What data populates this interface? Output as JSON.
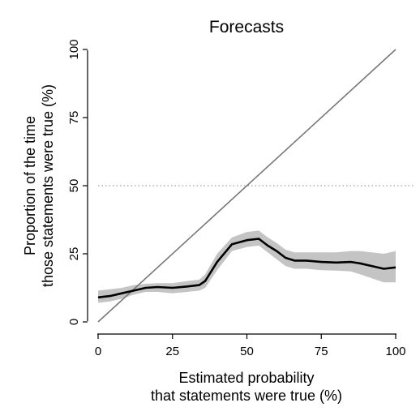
{
  "chart_data": {
    "type": "line",
    "title": "Forecasts",
    "xlabel": [
      "Estimated probability",
      "that statements were true (%)"
    ],
    "ylabel": [
      "Proportion of the time",
      "those statements were true (%)"
    ],
    "xlim": [
      0,
      100
    ],
    "ylim": [
      0,
      100
    ],
    "xticks": [
      "0",
      "25",
      "50",
      "75",
      "100"
    ],
    "yticks": [
      "0",
      "25",
      "50",
      "75",
      "100"
    ],
    "grid": false,
    "legend": "none",
    "reference_line": {
      "style": "dotted",
      "y": 50,
      "color": "#888888"
    },
    "diagonal": {
      "x": [
        0,
        100
      ],
      "y": [
        0,
        100
      ],
      "color": "#777777"
    },
    "series": [
      {
        "x": [
          0,
          4,
          8,
          12,
          16,
          20,
          25,
          30,
          34,
          36,
          40,
          45,
          50,
          54,
          57,
          60,
          63,
          66,
          70,
          75,
          80,
          85,
          88,
          92,
          96,
          100
        ],
        "y": [
          9,
          9.5,
          10.5,
          11.5,
          12.5,
          12.8,
          12.5,
          13,
          13.5,
          15,
          22,
          28.5,
          30,
          30.5,
          28,
          26,
          23.5,
          22.5,
          22.5,
          22,
          21.8,
          22,
          21.5,
          20.5,
          19.5,
          20
        ],
        "lower": [
          7,
          7.5,
          8.5,
          10,
          11,
          11,
          10.5,
          11,
          11.5,
          12.5,
          19,
          26,
          27.5,
          28,
          25.5,
          23,
          20.5,
          19.5,
          19.5,
          19,
          18.8,
          18.5,
          17.5,
          16,
          14.5,
          14.5
        ],
        "upper": [
          11.5,
          12,
          12.5,
          13.5,
          14,
          14.2,
          14.2,
          15,
          15.5,
          17.5,
          25,
          31,
          33,
          33.5,
          31,
          29,
          26.5,
          25.5,
          25.5,
          25.5,
          25.5,
          26,
          26,
          25.5,
          25,
          26
        ],
        "color": "#000000",
        "band_color": "#c4c4c4"
      }
    ]
  }
}
